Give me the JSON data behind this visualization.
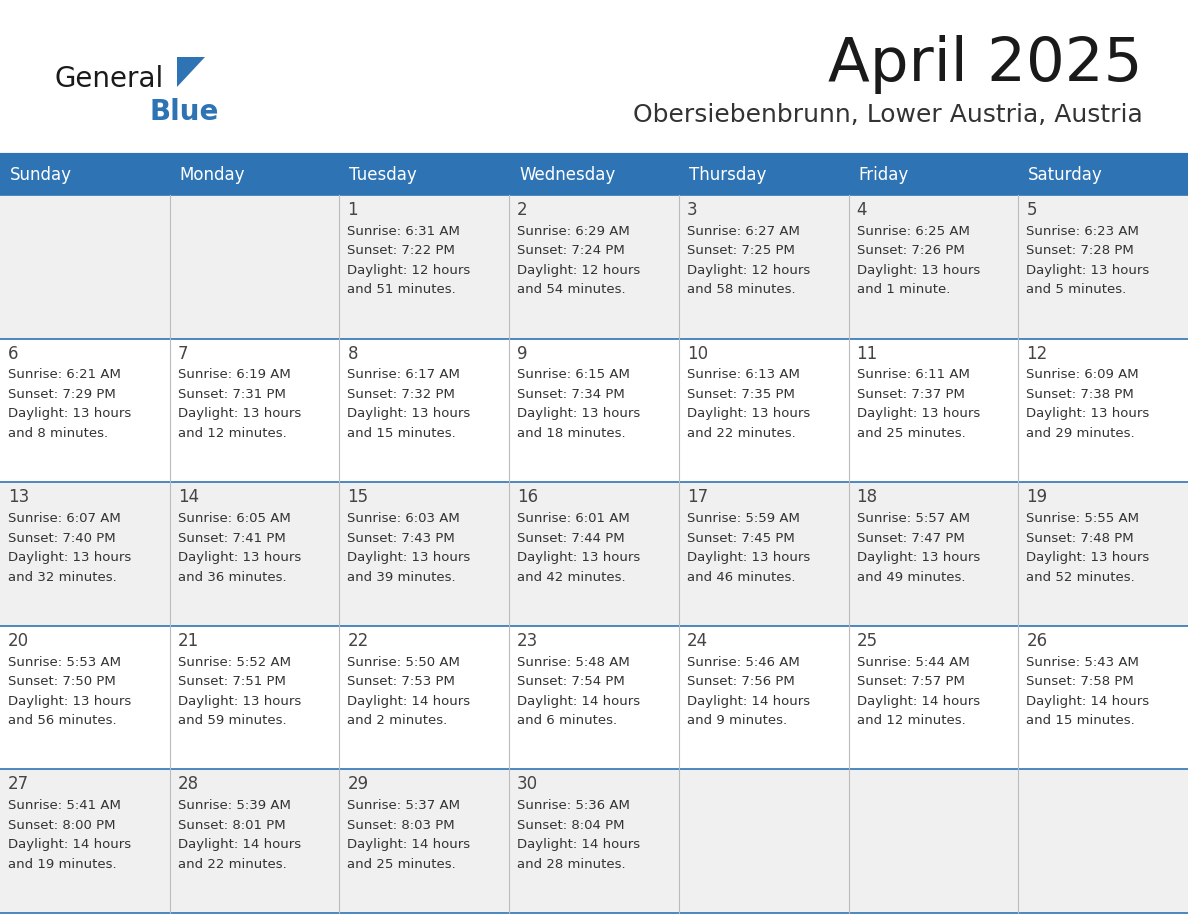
{
  "title": "April 2025",
  "subtitle": "Obersiebenbrunn, Lower Austria, Austria",
  "header_bg": "#2E74B5",
  "header_text_color": "#FFFFFF",
  "cell_bg_odd": "#F0F0F0",
  "cell_bg_even": "#FFFFFF",
  "cell_text_color": "#333333",
  "day_num_color": "#555555",
  "border_color": "#2E74B5",
  "day_headers": [
    "Sunday",
    "Monday",
    "Tuesday",
    "Wednesday",
    "Thursday",
    "Friday",
    "Saturday"
  ],
  "days": [
    {
      "day": 1,
      "col": 2,
      "row": 0,
      "sunrise": "6:31 AM",
      "sunset": "7:22 PM",
      "daylight": "12 hours",
      "daylight2": "and 51 minutes."
    },
    {
      "day": 2,
      "col": 3,
      "row": 0,
      "sunrise": "6:29 AM",
      "sunset": "7:24 PM",
      "daylight": "12 hours",
      "daylight2": "and 54 minutes."
    },
    {
      "day": 3,
      "col": 4,
      "row": 0,
      "sunrise": "6:27 AM",
      "sunset": "7:25 PM",
      "daylight": "12 hours",
      "daylight2": "and 58 minutes."
    },
    {
      "day": 4,
      "col": 5,
      "row": 0,
      "sunrise": "6:25 AM",
      "sunset": "7:26 PM",
      "daylight": "13 hours",
      "daylight2": "and 1 minute."
    },
    {
      "day": 5,
      "col": 6,
      "row": 0,
      "sunrise": "6:23 AM",
      "sunset": "7:28 PM",
      "daylight": "13 hours",
      "daylight2": "and 5 minutes."
    },
    {
      "day": 6,
      "col": 0,
      "row": 1,
      "sunrise": "6:21 AM",
      "sunset": "7:29 PM",
      "daylight": "13 hours",
      "daylight2": "and 8 minutes."
    },
    {
      "day": 7,
      "col": 1,
      "row": 1,
      "sunrise": "6:19 AM",
      "sunset": "7:31 PM",
      "daylight": "13 hours",
      "daylight2": "and 12 minutes."
    },
    {
      "day": 8,
      "col": 2,
      "row": 1,
      "sunrise": "6:17 AM",
      "sunset": "7:32 PM",
      "daylight": "13 hours",
      "daylight2": "and 15 minutes."
    },
    {
      "day": 9,
      "col": 3,
      "row": 1,
      "sunrise": "6:15 AM",
      "sunset": "7:34 PM",
      "daylight": "13 hours",
      "daylight2": "and 18 minutes."
    },
    {
      "day": 10,
      "col": 4,
      "row": 1,
      "sunrise": "6:13 AM",
      "sunset": "7:35 PM",
      "daylight": "13 hours",
      "daylight2": "and 22 minutes."
    },
    {
      "day": 11,
      "col": 5,
      "row": 1,
      "sunrise": "6:11 AM",
      "sunset": "7:37 PM",
      "daylight": "13 hours",
      "daylight2": "and 25 minutes."
    },
    {
      "day": 12,
      "col": 6,
      "row": 1,
      "sunrise": "6:09 AM",
      "sunset": "7:38 PM",
      "daylight": "13 hours",
      "daylight2": "and 29 minutes."
    },
    {
      "day": 13,
      "col": 0,
      "row": 2,
      "sunrise": "6:07 AM",
      "sunset": "7:40 PM",
      "daylight": "13 hours",
      "daylight2": "and 32 minutes."
    },
    {
      "day": 14,
      "col": 1,
      "row": 2,
      "sunrise": "6:05 AM",
      "sunset": "7:41 PM",
      "daylight": "13 hours",
      "daylight2": "and 36 minutes."
    },
    {
      "day": 15,
      "col": 2,
      "row": 2,
      "sunrise": "6:03 AM",
      "sunset": "7:43 PM",
      "daylight": "13 hours",
      "daylight2": "and 39 minutes."
    },
    {
      "day": 16,
      "col": 3,
      "row": 2,
      "sunrise": "6:01 AM",
      "sunset": "7:44 PM",
      "daylight": "13 hours",
      "daylight2": "and 42 minutes."
    },
    {
      "day": 17,
      "col": 4,
      "row": 2,
      "sunrise": "5:59 AM",
      "sunset": "7:45 PM",
      "daylight": "13 hours",
      "daylight2": "and 46 minutes."
    },
    {
      "day": 18,
      "col": 5,
      "row": 2,
      "sunrise": "5:57 AM",
      "sunset": "7:47 PM",
      "daylight": "13 hours",
      "daylight2": "and 49 minutes."
    },
    {
      "day": 19,
      "col": 6,
      "row": 2,
      "sunrise": "5:55 AM",
      "sunset": "7:48 PM",
      "daylight": "13 hours",
      "daylight2": "and 52 minutes."
    },
    {
      "day": 20,
      "col": 0,
      "row": 3,
      "sunrise": "5:53 AM",
      "sunset": "7:50 PM",
      "daylight": "13 hours",
      "daylight2": "and 56 minutes."
    },
    {
      "day": 21,
      "col": 1,
      "row": 3,
      "sunrise": "5:52 AM",
      "sunset": "7:51 PM",
      "daylight": "13 hours",
      "daylight2": "and 59 minutes."
    },
    {
      "day": 22,
      "col": 2,
      "row": 3,
      "sunrise": "5:50 AM",
      "sunset": "7:53 PM",
      "daylight": "14 hours",
      "daylight2": "and 2 minutes."
    },
    {
      "day": 23,
      "col": 3,
      "row": 3,
      "sunrise": "5:48 AM",
      "sunset": "7:54 PM",
      "daylight": "14 hours",
      "daylight2": "and 6 minutes."
    },
    {
      "day": 24,
      "col": 4,
      "row": 3,
      "sunrise": "5:46 AM",
      "sunset": "7:56 PM",
      "daylight": "14 hours",
      "daylight2": "and 9 minutes."
    },
    {
      "day": 25,
      "col": 5,
      "row": 3,
      "sunrise": "5:44 AM",
      "sunset": "7:57 PM",
      "daylight": "14 hours",
      "daylight2": "and 12 minutes."
    },
    {
      "day": 26,
      "col": 6,
      "row": 3,
      "sunrise": "5:43 AM",
      "sunset": "7:58 PM",
      "daylight": "14 hours",
      "daylight2": "and 15 minutes."
    },
    {
      "day": 27,
      "col": 0,
      "row": 4,
      "sunrise": "5:41 AM",
      "sunset": "8:00 PM",
      "daylight": "14 hours",
      "daylight2": "and 19 minutes."
    },
    {
      "day": 28,
      "col": 1,
      "row": 4,
      "sunrise": "5:39 AM",
      "sunset": "8:01 PM",
      "daylight": "14 hours",
      "daylight2": "and 22 minutes."
    },
    {
      "day": 29,
      "col": 2,
      "row": 4,
      "sunrise": "5:37 AM",
      "sunset": "8:03 PM",
      "daylight": "14 hours",
      "daylight2": "and 25 minutes."
    },
    {
      "day": 30,
      "col": 3,
      "row": 4,
      "sunrise": "5:36 AM",
      "sunset": "8:04 PM",
      "daylight": "14 hours",
      "daylight2": "and 28 minutes."
    }
  ]
}
